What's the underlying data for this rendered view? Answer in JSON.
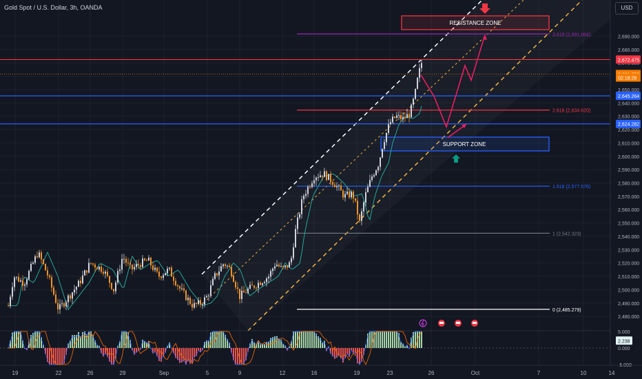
{
  "header": {
    "title": "Gold Spot / U.S. Dollar, 3h, OANDA",
    "currency_label": "USD"
  },
  "colors": {
    "background": "#131722",
    "candle_up": "#d1d4dc",
    "candle_down": "#f0932b",
    "resistance": "#f23645",
    "support": "#2962ff",
    "fib_purple": "#9c27b0",
    "channel_white": "#ffffff",
    "channel_yellow": "#f5b342",
    "moving_average": "#26a69a",
    "projection_arrow": "#e91e63",
    "macd_positive": "#a5d6a7",
    "macd_negative": "#ef5350"
  },
  "annotations": {
    "resistance_zone": "RESISTANCE ZONE",
    "support_zone": "SUPPORT ZONE"
  },
  "fib_labels": [
    {
      "label": "3.618 (2,691.664)",
      "price": 2691.664
    },
    {
      "label": "2.618 (2,634.620)",
      "price": 2634.62
    },
    {
      "label": "1.618 (2,577.576)",
      "price": 2577.576
    },
    {
      "label": "1 (2,542.323)",
      "price": 2542.323
    },
    {
      "label": "0 (2,485.279)",
      "price": 2485.279
    }
  ],
  "price_badges": [
    {
      "label": "2,672.475",
      "price": 2672.475,
      "color": "#f23645"
    },
    {
      "label": "2,661.650",
      "price": 2661.65,
      "color": "#f57c00"
    },
    {
      "label": "02:18:28",
      "price": 2659.0,
      "color": "#f57c00"
    },
    {
      "label": "2,645.264",
      "price": 2645.264,
      "color": "#2962ff"
    },
    {
      "label": "2,624.282",
      "price": 2624.282,
      "color": "#2962ff"
    }
  ],
  "macd_badge": {
    "label": "2.238",
    "value": 2.238
  },
  "chart_data": {
    "type": "candlestick",
    "symbol": "Gold Spot / U.S. Dollar",
    "interval": "3h",
    "ylim": [
      2478,
      2698
    ],
    "y_ticks": [
      "2,480.000",
      "2,490.000",
      "2,500.000",
      "2,510.000",
      "2,520.000",
      "2,530.000",
      "2,540.000",
      "2,550.000",
      "2,560.000",
      "2,570.000",
      "2,580.000",
      "2,590.000",
      "2,600.000",
      "2,610.000",
      "2,620.000",
      "2,630.000",
      "2,640.000",
      "2,650.000",
      "2,660.000",
      "2,670.000",
      "2,680.000",
      "2,690.000"
    ],
    "y_tick_values": [
      2480,
      2490,
      2500,
      2510,
      2520,
      2530,
      2540,
      2550,
      2560,
      2570,
      2580,
      2590,
      2600,
      2610,
      2620,
      2630,
      2640,
      2650,
      2660,
      2670,
      2680,
      2690
    ],
    "x_ticks": [
      "19",
      "22",
      "26",
      "29",
      "Sep",
      "5",
      "9",
      "12",
      "16",
      "19",
      "23",
      "26",
      "Oct",
      "7",
      "10",
      "14"
    ],
    "horizontal_levels": [
      {
        "name": "resistance-line-upper",
        "price": 2672.475
      },
      {
        "name": "resistance-line-lower",
        "price": 2645.264
      },
      {
        "name": "support-line",
        "price": 2624.282
      },
      {
        "name": "current-price-line",
        "price": 2661.65
      }
    ],
    "resistance_zone": {
      "price_low": 2690,
      "price_high": 2695
    },
    "support_zone": {
      "price_low": 2600,
      "price_high": 2610
    },
    "macd_ticks": [
      "5.000",
      "0.000",
      "-5.000"
    ],
    "macd_tick_values": [
      5,
      0,
      -5
    ],
    "candles_summary": {
      "start_price": 2505,
      "range_low": 2485.279,
      "swing_high_1": 2542.323,
      "latest_high": 2672.475,
      "latest_close": 2661.65
    },
    "projection_path": [
      {
        "x_label": "26",
        "price": 2661
      },
      {
        "x_label": "26",
        "price": 2645
      },
      {
        "x_label": "Oct",
        "price": 2622
      },
      {
        "x_label": "Oct",
        "price": 2668
      },
      {
        "x_label": "Oct",
        "price": 2657
      },
      {
        "x_label": "Oct",
        "price": 2691
      }
    ]
  }
}
